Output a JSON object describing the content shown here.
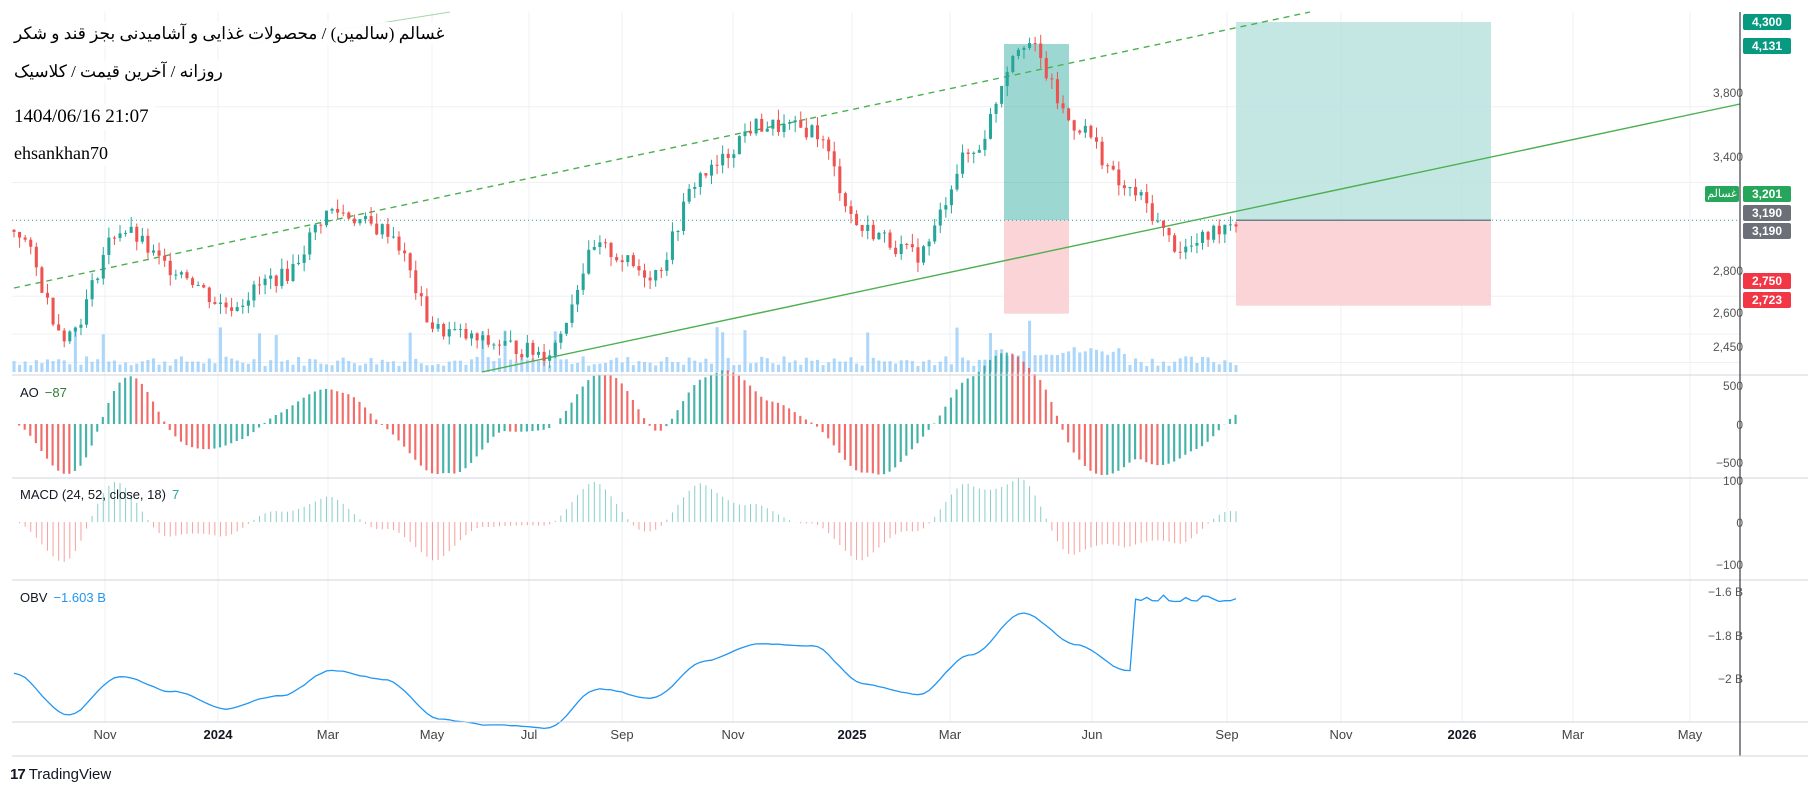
{
  "header": {
    "title_line1": "غسالم (سالمین) / محصولات غذایی و آشامیدنی بجز قند و شکر",
    "title_line2": "روزانه / آخرین قیمت / کلاسیک",
    "datetime": "1404/06/16 21:07",
    "author": "ehsankhan70"
  },
  "indicators": {
    "ao": {
      "name": "AO",
      "value": "−87"
    },
    "macd": {
      "name": "MACD (24, 52, close, 18)",
      "value": "7"
    },
    "obv": {
      "name": "OBV",
      "value": "−1.603 B"
    }
  },
  "price_axis": {
    "labels": [
      "3,800",
      "3,400",
      "2,800",
      "2,600",
      "2,450"
    ],
    "tags": {
      "tp": "4,300",
      "high": "4,131",
      "symbol": "غسالم",
      "last": "3,201",
      "p1": "3,190",
      "p2": "3,190",
      "sl": "2,750",
      "low": "2,723"
    }
  },
  "ao_axis": [
    "500",
    "0",
    "−500"
  ],
  "macd_axis": [
    "100",
    "0",
    "−100"
  ],
  "obv_axis": [
    "−1.6 B",
    "−1.8 B",
    "−2 B"
  ],
  "time_axis": [
    "Nov",
    "2024",
    "Mar",
    "May",
    "Jul",
    "Sep",
    "Nov",
    "2025",
    "Mar",
    "Jun",
    "Sep",
    "Nov",
    "2026",
    "Mar",
    "May"
  ],
  "footer": {
    "brand": "TradingView"
  },
  "colors": {
    "up": "#26a69a",
    "down": "#ef5350",
    "volume": "#90caf9",
    "obv": "#2196f3",
    "trend": "#4caf50",
    "tp_zone": "#b2dfdb",
    "sl_zone": "#fad4d7"
  },
  "chart_data": [
    {
      "type": "candlestick",
      "ylim": [
        2400,
        4300
      ],
      "yticks": [
        2450,
        2600,
        2800,
        3400,
        3800
      ],
      "series": [
        {
          "name": "غسالم",
          "last": 3201
        }
      ],
      "x": [
        "2023-10",
        "2023-11",
        "2023-12",
        "2024-01",
        "2024-02",
        "2024-03",
        "2024-04",
        "2024-05",
        "2024-06",
        "2024-07",
        "2024-08",
        "2024-09",
        "2024-10",
        "2024-11",
        "2024-12",
        "2025-01",
        "2025-02",
        "2025-03",
        "2025-04",
        "2025-05",
        "2025-06",
        "2025-07",
        "2025-08",
        "2025-09"
      ],
      "close": [
        3150,
        2600,
        3150,
        2950,
        2750,
        2900,
        3250,
        3150,
        2620,
        2550,
        2500,
        3050,
        2920,
        3450,
        3700,
        3680,
        3150,
        3020,
        3550,
        4150,
        3700,
        3350,
        3050,
        3201
      ],
      "trade_zones": {
        "entry": 3201,
        "take_profit": 4300,
        "stop_loss": 2750
      }
    },
    {
      "type": "bar",
      "series": [
        {
          "name": "AO",
          "last": -87
        }
      ],
      "ylim": [
        -600,
        600
      ]
    },
    {
      "type": "bar",
      "series": [
        {
          "name": "MACD",
          "last": 7
        }
      ],
      "ylim": [
        -120,
        120
      ]
    },
    {
      "type": "line",
      "series": [
        {
          "name": "OBV",
          "last": -1.603
        }
      ],
      "ylim": [
        -2.1,
        -1.55
      ]
    }
  ]
}
